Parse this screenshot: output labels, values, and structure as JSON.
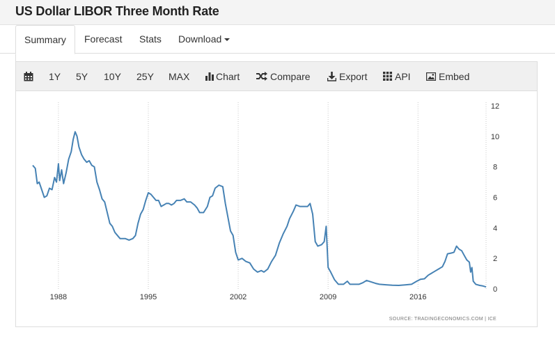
{
  "page": {
    "title": "US Dollar LIBOR Three Month Rate"
  },
  "tabs": [
    {
      "label": "Summary",
      "active": true
    },
    {
      "label": "Forecast",
      "active": false
    },
    {
      "label": "Stats",
      "active": false
    },
    {
      "label": "Download",
      "active": false
    }
  ],
  "toolbar": {
    "calendar_icon": "calendar-icon",
    "ranges": [
      "1Y",
      "5Y",
      "10Y",
      "25Y",
      "MAX"
    ],
    "chart_label": "Chart",
    "compare_label": "Compare",
    "export_label": "Export",
    "api_label": "API",
    "embed_label": "Embed"
  },
  "source": {
    "text": "SOURCE: TRADINGECONOMICS.COM  |  ICE"
  },
  "chart_data": {
    "type": "line",
    "title": "",
    "xlabel": "",
    "ylabel": "",
    "x_ticks": [
      "1988",
      "1995",
      "2002",
      "2009",
      "2016"
    ],
    "y_ticks": [
      "0",
      "2",
      "4",
      "6",
      "8",
      "10",
      "12"
    ],
    "ylim": [
      0,
      12
    ],
    "xlim": [
      1986.0,
      2021.3
    ],
    "grid": "vertical-dotted",
    "line_color": "#4682b4",
    "series": [
      {
        "values": [
          [
            1986.0,
            8.1
          ],
          [
            1986.2,
            7.9
          ],
          [
            1986.35,
            6.9
          ],
          [
            1986.5,
            7.0
          ],
          [
            1986.7,
            6.5
          ],
          [
            1986.9,
            6.0
          ],
          [
            1987.1,
            6.1
          ],
          [
            1987.3,
            6.6
          ],
          [
            1987.5,
            6.5
          ],
          [
            1987.7,
            7.3
          ],
          [
            1987.85,
            7.0
          ],
          [
            1988.0,
            8.2
          ],
          [
            1988.1,
            7.1
          ],
          [
            1988.25,
            7.8
          ],
          [
            1988.4,
            6.9
          ],
          [
            1988.6,
            7.6
          ],
          [
            1988.8,
            8.5
          ],
          [
            1989.0,
            9.0
          ],
          [
            1989.15,
            9.8
          ],
          [
            1989.3,
            10.3
          ],
          [
            1989.45,
            10.0
          ],
          [
            1989.6,
            9.3
          ],
          [
            1989.8,
            8.8
          ],
          [
            1990.0,
            8.5
          ],
          [
            1990.2,
            8.3
          ],
          [
            1990.4,
            8.4
          ],
          [
            1990.6,
            8.1
          ],
          [
            1990.8,
            8.0
          ],
          [
            1991.0,
            7.0
          ],
          [
            1991.2,
            6.5
          ],
          [
            1991.4,
            5.9
          ],
          [
            1991.6,
            5.7
          ],
          [
            1991.8,
            5.0
          ],
          [
            1992.0,
            4.3
          ],
          [
            1992.2,
            4.1
          ],
          [
            1992.4,
            3.7
          ],
          [
            1992.6,
            3.5
          ],
          [
            1992.8,
            3.3
          ],
          [
            1993.0,
            3.3
          ],
          [
            1993.2,
            3.3
          ],
          [
            1993.5,
            3.2
          ],
          [
            1993.8,
            3.3
          ],
          [
            1994.0,
            3.5
          ],
          [
            1994.2,
            4.3
          ],
          [
            1994.4,
            4.9
          ],
          [
            1994.6,
            5.2
          ],
          [
            1994.8,
            5.8
          ],
          [
            1995.0,
            6.3
          ],
          [
            1995.2,
            6.2
          ],
          [
            1995.4,
            6.0
          ],
          [
            1995.6,
            5.8
          ],
          [
            1995.8,
            5.8
          ],
          [
            1996.0,
            5.4
          ],
          [
            1996.2,
            5.5
          ],
          [
            1996.4,
            5.6
          ],
          [
            1996.6,
            5.6
          ],
          [
            1996.8,
            5.5
          ],
          [
            1997.0,
            5.6
          ],
          [
            1997.2,
            5.8
          ],
          [
            1997.5,
            5.8
          ],
          [
            1997.8,
            5.9
          ],
          [
            1998.0,
            5.7
          ],
          [
            1998.3,
            5.7
          ],
          [
            1998.6,
            5.5
          ],
          [
            1998.8,
            5.3
          ],
          [
            1999.0,
            5.0
          ],
          [
            1999.3,
            5.0
          ],
          [
            1999.6,
            5.4
          ],
          [
            1999.8,
            6.0
          ],
          [
            2000.0,
            6.1
          ],
          [
            2000.2,
            6.6
          ],
          [
            2000.5,
            6.8
          ],
          [
            2000.8,
            6.7
          ],
          [
            2001.0,
            5.6
          ],
          [
            2001.2,
            4.7
          ],
          [
            2001.4,
            3.8
          ],
          [
            2001.6,
            3.5
          ],
          [
            2001.8,
            2.4
          ],
          [
            2002.0,
            1.9
          ],
          [
            2002.3,
            2.0
          ],
          [
            2002.6,
            1.8
          ],
          [
            2002.9,
            1.7
          ],
          [
            2003.2,
            1.3
          ],
          [
            2003.5,
            1.1
          ],
          [
            2003.8,
            1.2
          ],
          [
            2004.0,
            1.1
          ],
          [
            2004.3,
            1.3
          ],
          [
            2004.6,
            1.8
          ],
          [
            2004.9,
            2.2
          ],
          [
            2005.2,
            3.0
          ],
          [
            2005.5,
            3.6
          ],
          [
            2005.8,
            4.1
          ],
          [
            2006.0,
            4.6
          ],
          [
            2006.3,
            5.1
          ],
          [
            2006.5,
            5.5
          ],
          [
            2006.8,
            5.4
          ],
          [
            2007.1,
            5.4
          ],
          [
            2007.4,
            5.4
          ],
          [
            2007.6,
            5.6
          ],
          [
            2007.8,
            4.9
          ],
          [
            2008.0,
            3.1
          ],
          [
            2008.2,
            2.8
          ],
          [
            2008.5,
            2.9
          ],
          [
            2008.7,
            3.1
          ],
          [
            2008.85,
            4.1
          ],
          [
            2009.0,
            1.4
          ],
          [
            2009.2,
            1.1
          ],
          [
            2009.5,
            0.6
          ],
          [
            2009.8,
            0.3
          ],
          [
            2010.2,
            0.3
          ],
          [
            2010.5,
            0.5
          ],
          [
            2010.7,
            0.3
          ],
          [
            2011.0,
            0.3
          ],
          [
            2011.4,
            0.3
          ],
          [
            2011.7,
            0.4
          ],
          [
            2012.0,
            0.55
          ],
          [
            2012.3,
            0.47
          ],
          [
            2012.7,
            0.36
          ],
          [
            2013.0,
            0.3
          ],
          [
            2013.5,
            0.27
          ],
          [
            2014.0,
            0.24
          ],
          [
            2014.5,
            0.23
          ],
          [
            2015.0,
            0.26
          ],
          [
            2015.5,
            0.3
          ],
          [
            2015.9,
            0.5
          ],
          [
            2016.2,
            0.63
          ],
          [
            2016.5,
            0.66
          ],
          [
            2016.8,
            0.9
          ],
          [
            2017.0,
            1.0
          ],
          [
            2017.3,
            1.15
          ],
          [
            2017.6,
            1.3
          ],
          [
            2017.9,
            1.45
          ],
          [
            2018.1,
            1.8
          ],
          [
            2018.3,
            2.3
          ],
          [
            2018.6,
            2.35
          ],
          [
            2018.8,
            2.4
          ],
          [
            2019.0,
            2.8
          ],
          [
            2019.2,
            2.6
          ],
          [
            2019.4,
            2.5
          ],
          [
            2019.6,
            2.2
          ],
          [
            2019.8,
            1.9
          ],
          [
            2020.0,
            1.75
          ],
          [
            2020.1,
            1.1
          ],
          [
            2020.2,
            1.4
          ],
          [
            2020.3,
            0.5
          ],
          [
            2020.5,
            0.3
          ],
          [
            2020.8,
            0.23
          ],
          [
            2021.0,
            0.2
          ],
          [
            2021.3,
            0.13
          ]
        ]
      }
    ]
  }
}
